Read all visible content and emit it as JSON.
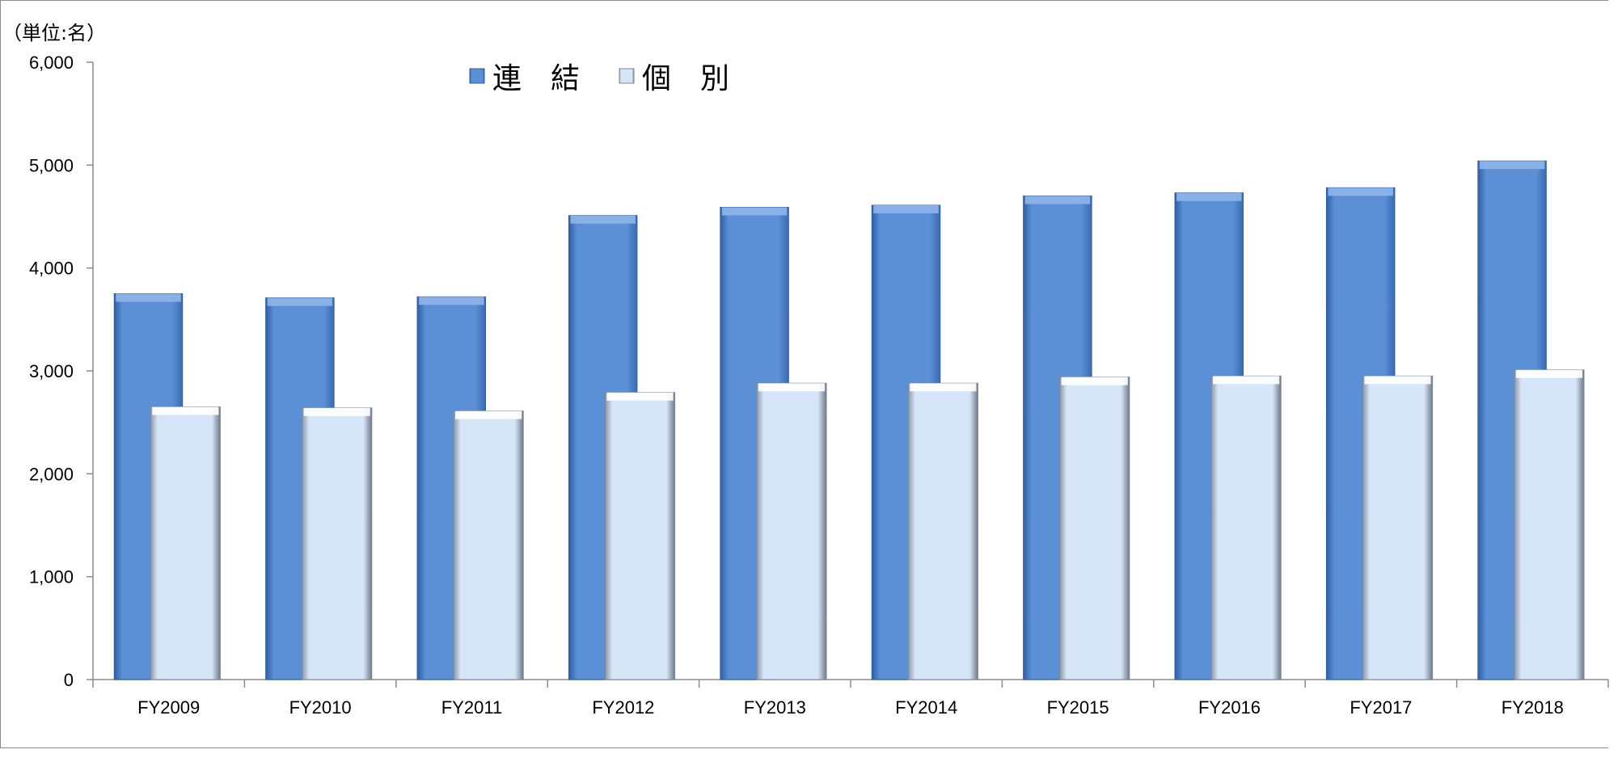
{
  "chart_data": {
    "type": "bar",
    "unit_label": "（単位:名）",
    "categories": [
      "FY2009",
      "FY2010",
      "FY2011",
      "FY2012",
      "FY2013",
      "FY2014",
      "FY2015",
      "FY2016",
      "FY2017",
      "FY2018"
    ],
    "series": [
      {
        "name": "連　結",
        "color": "#5b8fd6",
        "values": [
          3750,
          3710,
          3720,
          4510,
          4590,
          4610,
          4700,
          4730,
          4780,
          5040
        ]
      },
      {
        "name": "個　別",
        "color": "#d7e5f8",
        "values": [
          2650,
          2640,
          2610,
          2790,
          2880,
          2880,
          2940,
          2950,
          2950,
          3010
        ]
      }
    ],
    "yticks": [
      "0",
      "1,000",
      "2,000",
      "3,000",
      "4,000",
      "5,000",
      "6,000"
    ],
    "ylim": [
      0,
      6000
    ],
    "grid": false,
    "legend_position": "top"
  }
}
